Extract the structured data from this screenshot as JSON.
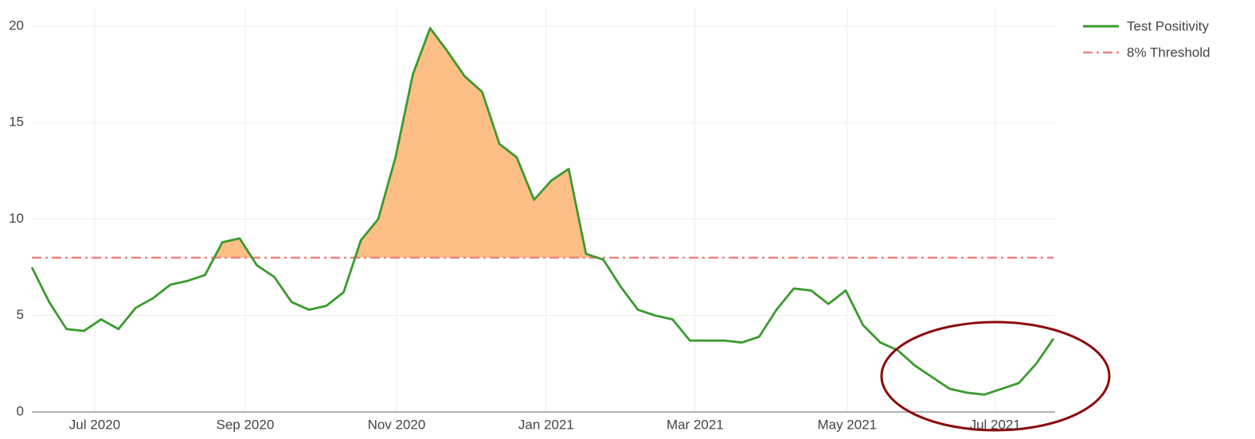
{
  "chart_data": {
    "type": "line",
    "categories": [
      null,
      null,
      null,
      null,
      null,
      null,
      null,
      null,
      null,
      null,
      null,
      null,
      null,
      null,
      null,
      null,
      null,
      null,
      null,
      null,
      null,
      null,
      null,
      null,
      null,
      null,
      null,
      null,
      null,
      null,
      null,
      null,
      null,
      null,
      null,
      null,
      null,
      null,
      null,
      null,
      null,
      null,
      null,
      null,
      null,
      null,
      null,
      null,
      null,
      null,
      null,
      null,
      null,
      null,
      null,
      null,
      null,
      null,
      null,
      null
    ],
    "series": [
      {
        "name": "Test Positivity",
        "color": "#3a9a2e",
        "values": [
          7.5,
          5.7,
          4.3,
          4.2,
          4.8,
          4.3,
          5.4,
          5.9,
          6.6,
          6.8,
          7.1,
          8.8,
          9.0,
          7.6,
          7.0,
          5.7,
          5.3,
          5.5,
          6.2,
          8.9,
          10.0,
          13.2,
          17.5,
          19.9,
          18.7,
          17.4,
          16.6,
          13.9,
          13.2,
          11.0,
          12.0,
          12.6,
          8.2,
          7.9,
          6.5,
          5.3,
          5.0,
          4.8,
          3.7,
          3.7,
          3.7,
          3.6,
          3.9,
          5.3,
          6.4,
          6.3,
          5.6,
          6.3,
          4.5,
          3.6,
          3.2,
          2.4,
          1.8,
          1.2,
          1.0,
          0.9,
          1.2,
          1.5,
          2.5,
          3.8
        ]
      }
    ],
    "threshold": {
      "name": "8% Threshold",
      "value": 8,
      "color": "#f08080"
    },
    "fill_color": "#fdbf86",
    "xlim": [
      0,
      59
    ],
    "xticks": [
      {
        "value": 3.63,
        "label": "Jul 2020"
      },
      {
        "value": 12.32,
        "label": "Sep 2020"
      },
      {
        "value": 21.06,
        "label": "Nov 2020"
      },
      {
        "value": 29.7,
        "label": "Jan 2021"
      },
      {
        "value": 38.3,
        "label": "Mar 2021"
      },
      {
        "value": 47.08,
        "label": "May 2021"
      },
      {
        "value": 55.63,
        "label": "Jul 2021"
      }
    ],
    "ylim": [
      0,
      20
    ],
    "yticks": [
      0,
      5,
      10,
      15,
      20
    ],
    "grid": true,
    "legend": "top-right"
  }
}
